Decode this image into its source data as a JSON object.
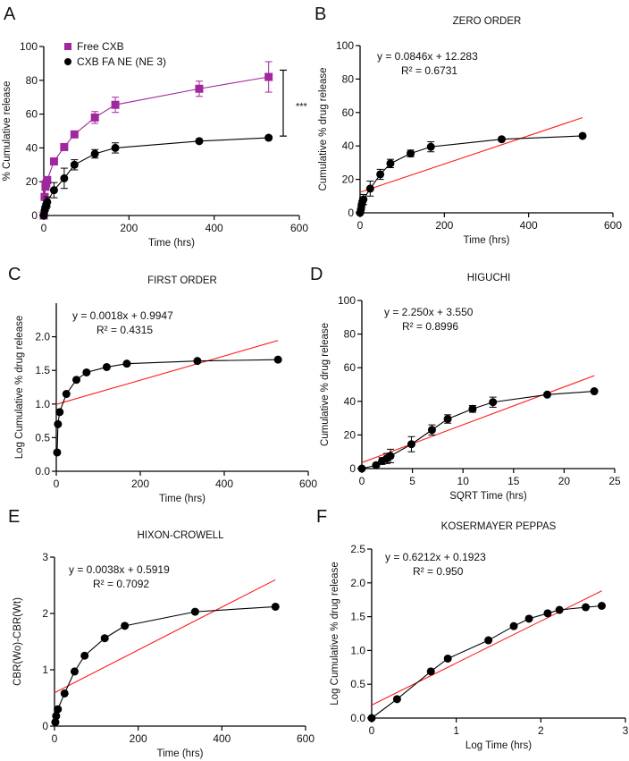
{
  "colors": {
    "free_cxb": "#a0279d",
    "ne3": "#000000",
    "fit_line": "#ff1a1a",
    "axis": "#000000"
  },
  "chart_data": [
    {
      "panel": "A",
      "type": "line",
      "title": "",
      "xlabel": "Time (hrs)",
      "ylabel": "% Cumulative release",
      "xlim": [
        0,
        600
      ],
      "ylim": [
        0,
        100
      ],
      "xticks": [
        0,
        200,
        400,
        600
      ],
      "yticks": [
        0,
        20,
        40,
        60,
        80,
        100
      ],
      "legend": "top-left",
      "annotation": "***",
      "series": [
        {
          "name": "Free CXB",
          "marker": "square",
          "color": "#a0279d",
          "x": [
            0,
            2,
            4,
            6,
            8,
            24,
            48,
            72,
            120,
            168,
            365,
            528
          ],
          "y": [
            0,
            11,
            17,
            19,
            21,
            32,
            40.5,
            48,
            58,
            65.5,
            75,
            82
          ],
          "err": [
            0,
            1,
            1.5,
            1.5,
            1.5,
            1.5,
            1.5,
            2,
            3.5,
            4.5,
            4.5,
            9
          ]
        },
        {
          "name": "CXB FA NE (NE 3)",
          "marker": "circle",
          "color": "#000000",
          "x": [
            0,
            2,
            4,
            6,
            8,
            24,
            48,
            72,
            120,
            168,
            365,
            528
          ],
          "y": [
            0,
            3,
            5,
            6,
            8,
            15,
            22,
            30,
            36.5,
            40,
            44,
            46
          ],
          "err": [
            0,
            2,
            2,
            2,
            3,
            4.5,
            6,
            3,
            2.5,
            3,
            1,
            1
          ]
        }
      ]
    },
    {
      "panel": "B",
      "type": "line",
      "title": "ZERO ORDER",
      "xlabel": "Time (hrs)",
      "ylabel": "Cumulative % drug release",
      "xlim": [
        0,
        600
      ],
      "ylim": [
        0,
        100
      ],
      "xticks": [
        0,
        200,
        400,
        600
      ],
      "yticks": [
        0,
        20,
        40,
        60,
        80,
        100
      ],
      "equation": "y = 0.0846x + 12.283",
      "r2": "R² = 0.6731",
      "fit": {
        "slope": 0.0846,
        "intercept": 12.283,
        "x_range": [
          0,
          528
        ]
      },
      "series": [
        {
          "x": [
            0,
            2,
            4,
            6,
            8,
            24,
            48,
            72,
            120,
            168,
            336,
            528
          ],
          "y": [
            0,
            2,
            5,
            7,
            8,
            14.5,
            23,
            29.5,
            35.5,
            39.5,
            44,
            46
          ],
          "err": [
            0,
            2,
            2,
            2,
            3,
            4.5,
            3,
            2.5,
            2,
            3,
            0,
            0
          ]
        }
      ]
    },
    {
      "panel": "C",
      "type": "line",
      "title": "FIRST ORDER",
      "xlabel": "Time (hrs)",
      "ylabel": "Log Cumulative % drug release",
      "xlim": [
        0,
        600
      ],
      "ylim": [
        0,
        2.5
      ],
      "xticks": [
        0,
        200,
        400,
        600
      ],
      "yticks": [
        0.0,
        0.5,
        1.0,
        1.5,
        2.0
      ],
      "ytick_labels": [
        "0.0",
        "0.5",
        "1.0",
        "1.5",
        "2.0"
      ],
      "equation": "y = 0.0018x + 0.9947",
      "r2": "R² = 0.4315",
      "fit": {
        "slope": 0.0018,
        "intercept": 0.9947,
        "x_range": [
          0,
          528
        ]
      },
      "series": [
        {
          "x": [
            2,
            4,
            8,
            24,
            48,
            72,
            120,
            168,
            336,
            528
          ],
          "y": [
            0.28,
            0.7,
            0.88,
            1.15,
            1.36,
            1.47,
            1.55,
            1.6,
            1.64,
            1.66
          ]
        }
      ]
    },
    {
      "panel": "D",
      "type": "line",
      "title": "HIGUCHI",
      "xlabel": "SQRT Time (hrs)",
      "ylabel": "Cumulative % drug release",
      "xlim": [
        0,
        25
      ],
      "ylim": [
        0,
        100
      ],
      "xticks": [
        0,
        5,
        10,
        15,
        20,
        25
      ],
      "yticks": [
        0,
        20,
        40,
        60,
        80,
        100
      ],
      "equation": "y = 2.250x + 3.550",
      "r2": "R² = 0.8996",
      "fit": {
        "slope": 2.25,
        "intercept": 3.55,
        "x_range": [
          0,
          23
        ]
      },
      "series": [
        {
          "x": [
            0,
            1.41,
            2,
            2.45,
            2.83,
            4.9,
            6.93,
            8.49,
            10.95,
            12.96,
            18.33,
            22.98
          ],
          "y": [
            0,
            2,
            4.5,
            6,
            7.5,
            14.5,
            23,
            29.5,
            35.5,
            39.5,
            44,
            46
          ],
          "err": [
            0,
            1,
            2,
            3,
            4,
            4.5,
            3,
            2.5,
            2,
            3,
            0,
            0
          ]
        }
      ]
    },
    {
      "panel": "E",
      "type": "line",
      "title": "HIXON-CROWELL",
      "xlabel": "Time (hrs)",
      "ylabel": "CBR(Wo)-CBR(Wt)",
      "xlim": [
        0,
        600
      ],
      "ylim": [
        0,
        3
      ],
      "xticks": [
        0,
        200,
        400,
        600
      ],
      "yticks": [
        0,
        1,
        2,
        3
      ],
      "equation": "y = 0.0038x + 0.5919",
      "r2": "R² = 0.7092",
      "fit": {
        "slope": 0.0038,
        "intercept": 0.5919,
        "x_range": [
          0,
          528
        ]
      },
      "series": [
        {
          "x": [
            2,
            4,
            8,
            24,
            48,
            72,
            120,
            168,
            336,
            528
          ],
          "y": [
            0.07,
            0.18,
            0.3,
            0.58,
            0.97,
            1.25,
            1.56,
            1.78,
            2.03,
            2.12
          ]
        }
      ]
    },
    {
      "panel": "F",
      "type": "line",
      "title": "KOSERMAYER PEPPAS",
      "xlabel": "Log Time (hrs)",
      "ylabel": "Log Cumulative % drug release",
      "xlim": [
        0,
        3
      ],
      "ylim": [
        0,
        2.5
      ],
      "xticks": [
        0,
        1,
        2,
        3
      ],
      "yticks": [
        0.0,
        0.5,
        1.0,
        1.5,
        2.0,
        2.5
      ],
      "ytick_labels": [
        "0.0",
        "0.5",
        "1.0",
        "1.5",
        "2.0",
        "2.5"
      ],
      "equation": "y = 0.6212x + 0.1923",
      "r2": "R² = 0.950",
      "fit": {
        "slope": 0.6212,
        "intercept": 0.1923,
        "x_range": [
          0,
          2.72
        ]
      },
      "series": [
        {
          "x": [
            0,
            0.3,
            0.7,
            0.9,
            1.38,
            1.68,
            1.86,
            2.08,
            2.22,
            2.53,
            2.72
          ],
          "y": [
            0,
            0.28,
            0.69,
            0.88,
            1.15,
            1.36,
            1.47,
            1.55,
            1.6,
            1.64,
            1.66
          ]
        }
      ]
    }
  ]
}
